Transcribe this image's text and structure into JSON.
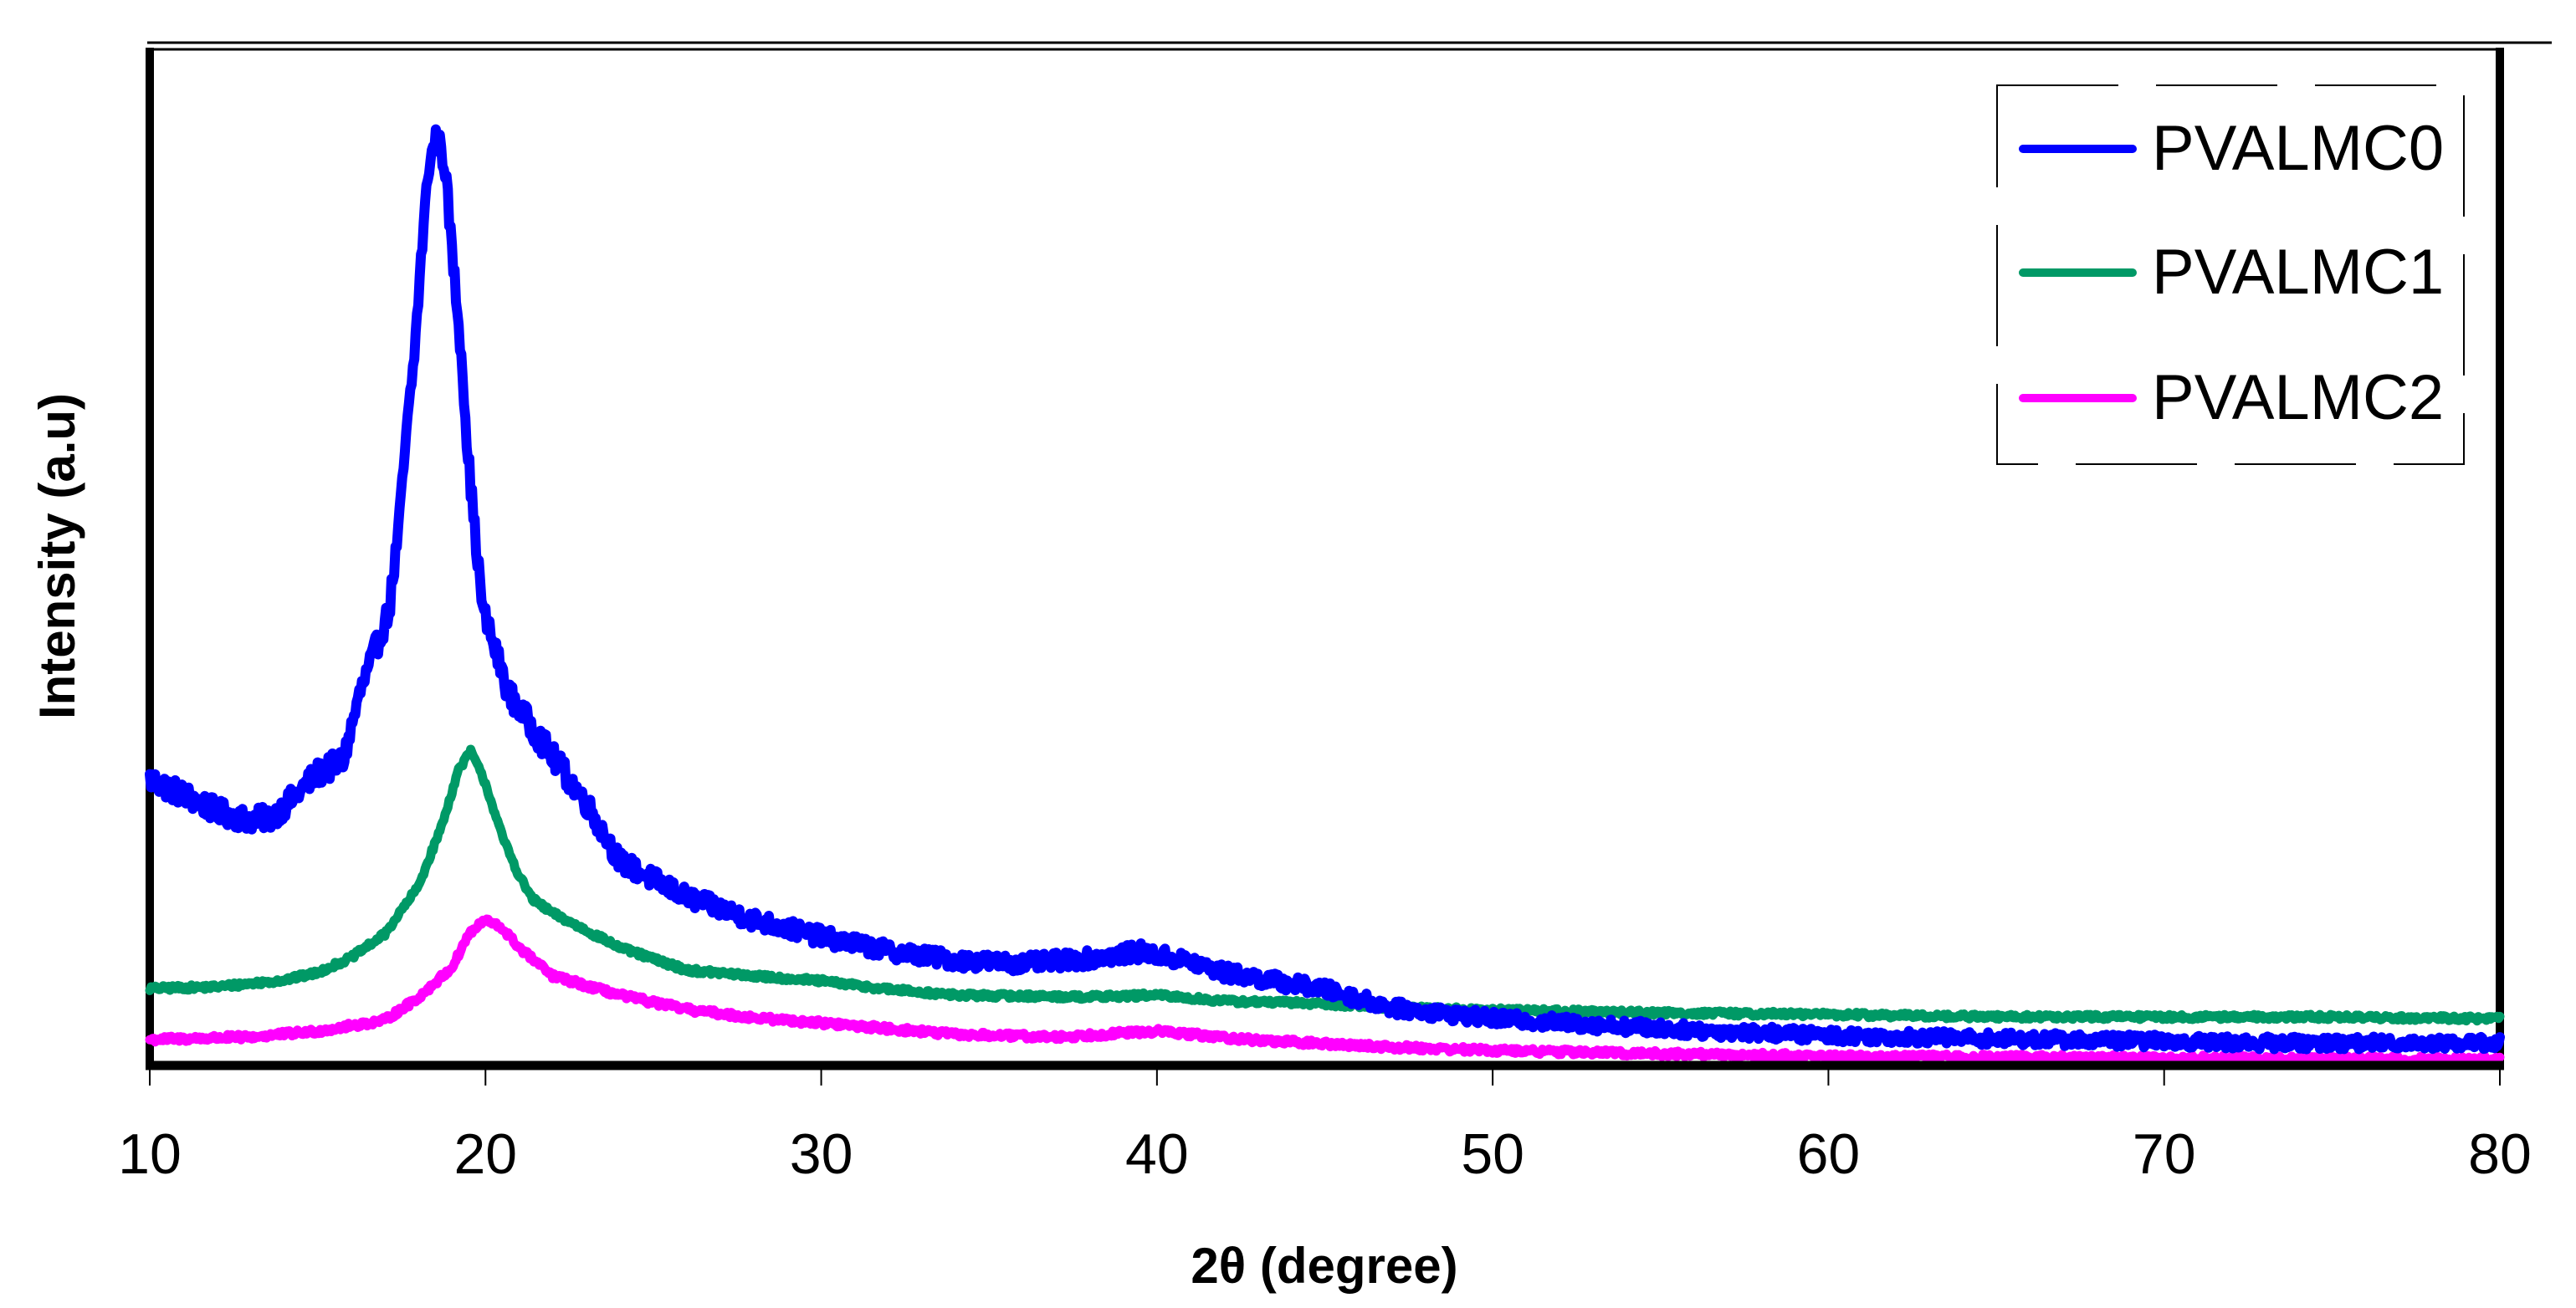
{
  "figure": {
    "x_axis_title": "2θ (degree)",
    "y_axis_title": "Intensity (a.u)",
    "x_tick_labels": [
      "10",
      "20",
      "30",
      "40",
      "50",
      "60",
      "70",
      "80"
    ],
    "legend": [
      {
        "label": "PVALMC0",
        "color": "#0000FF"
      },
      {
        "label": "PVALMC1",
        "color": "#009966"
      },
      {
        "label": "PVALMC2",
        "color": "#FF00FF"
      }
    ]
  },
  "chart_data": {
    "type": "line",
    "title": "",
    "xlabel": "2θ (degree)",
    "ylabel": "Intensity (a.u)",
    "xlim": [
      10,
      80
    ],
    "ylim": [
      0,
      1215
    ],
    "grid": false,
    "legend_position": "upper right",
    "x_ticks": [
      10,
      20,
      30,
      40,
      50,
      60,
      70,
      80
    ],
    "y_ticks": [],
    "noise_amplitude": {
      "PVALMC0": 14,
      "PVALMC1": 6,
      "PVALMC2": 7
    },
    "series": [
      {
        "name": "PVALMC0",
        "color": "#0000FF",
        "x": [
          10,
          11,
          12,
          12.9,
          13.6,
          14,
          15,
          15.76,
          16.25,
          17.13,
          17.42,
          17.62,
          17.87,
          18.1,
          18.3,
          18.55,
          18.8,
          19.0,
          19.3,
          19.45,
          19.67,
          19.92,
          20.7,
          22.0,
          23,
          24,
          26,
          28,
          30,
          32,
          34,
          36,
          38,
          39.5,
          41,
          42,
          45,
          47,
          50,
          53,
          56,
          60,
          65,
          70,
          73,
          80
        ],
        "y": [
          342,
          324,
          304,
          294,
          296,
          309,
          349,
          364,
          444,
          544,
          644,
          744,
          844,
          974,
          1074,
          1114,
          1074,
          974,
          844,
          744,
          644,
          544,
          444,
          369,
          314,
          244,
          201,
          174,
          154,
          137,
          126,
          122,
          128,
          136,
          124,
          111,
          91,
          69,
          56,
          49,
          42,
          36,
          32,
          29,
          27,
          27
        ]
      },
      {
        "name": "PVALMC1",
        "color": "#009966",
        "x": [
          10,
          12,
          14,
          15,
          16,
          17,
          18,
          18.7,
          19.2,
          19.57,
          20,
          20.5,
          21,
          21.4,
          22,
          24,
          26,
          28,
          30,
          32,
          34,
          38,
          40,
          42,
          45,
          47,
          50,
          55,
          60,
          65,
          70,
          75,
          80
        ],
        "y": [
          92,
          94,
          102,
          111,
          129,
          157,
          214,
          287,
          354,
          376,
          337,
          274,
          227,
          199,
          182,
          141,
          114,
          107,
          101,
          91,
          84,
          82,
          84,
          77,
          74,
          69,
          66,
          63,
          61,
          58,
          58,
          58,
          56
        ]
      },
      {
        "name": "PVALMC2",
        "color": "#FF00FF",
        "x": [
          10,
          13,
          15,
          17,
          18,
          19,
          19.5,
          20,
          20.5,
          21,
          22,
          24,
          26,
          28,
          30,
          32,
          34,
          37,
          40,
          43,
          47,
          50,
          55,
          60,
          70,
          80
        ],
        "y": [
          31,
          34,
          41,
          54,
          81,
          117,
          157,
          174,
          164,
          141,
          107,
          84,
          67,
          57,
          51,
          44,
          37,
          34,
          41,
          30,
          22,
          18,
          14,
          11,
          9,
          7
        ]
      }
    ]
  }
}
